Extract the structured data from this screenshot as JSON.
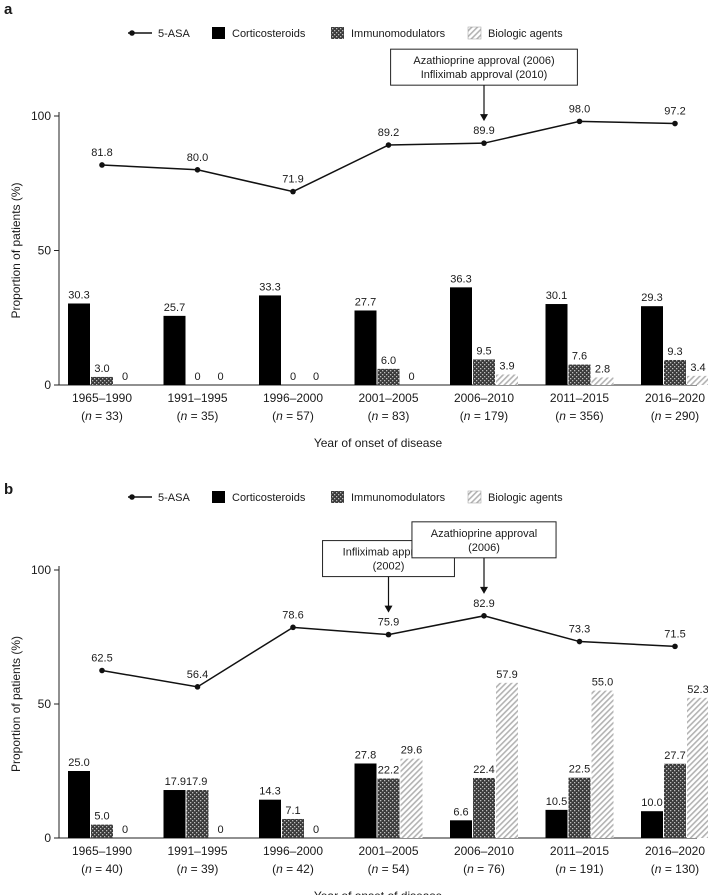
{
  "chart_data": [
    {
      "panel_label": "a",
      "type": "bar+line",
      "title": "",
      "xlabel": "Year of onset of disease",
      "ylabel": "Proportion of patients (%)",
      "ylim": [
        0,
        100
      ],
      "yticks": [
        "0",
        "50",
        "100"
      ],
      "categories": [
        "1965–1990",
        "1991–1995",
        "1996–2000",
        "2001–2005",
        "2006–2010",
        "2011–2015",
        "2016–2020"
      ],
      "category_n": [
        "(n = 33)",
        "(n = 35)",
        "(n = 57)",
        "(n = 83)",
        "(n = 179)",
        "(n = 356)",
        "(n = 290)"
      ],
      "legend": [
        {
          "name": "5-ASA",
          "style": "line"
        },
        {
          "name": "Corticosteroids",
          "style": "solid"
        },
        {
          "name": "Immunomodulators",
          "style": "dotted"
        },
        {
          "name": "Biologic agents",
          "style": "hatched"
        }
      ],
      "line_series": {
        "name": "5-ASA",
        "values": [
          81.8,
          80.0,
          71.9,
          89.2,
          89.9,
          98.0,
          97.2
        ],
        "labels": [
          "81.8",
          "80.0",
          "71.9",
          "89.2",
          "89.9",
          "98.0",
          "97.2"
        ]
      },
      "bar_series": [
        {
          "name": "Corticosteroids",
          "style": "solid",
          "values": [
            30.3,
            25.7,
            33.3,
            27.7,
            36.3,
            30.1,
            29.3
          ],
          "labels": [
            "30.3",
            "",
            "33.3",
            "27.7",
            "36.3",
            "30.1",
            "29.3"
          ]
        },
        {
          "name": "Immunomodulators",
          "style": "dotted",
          "values": [
            3.0,
            0,
            0,
            6.0,
            9.5,
            7.6,
            9.3
          ],
          "labels": [
            "3.0",
            "0",
            "0",
            "6.0",
            "9.5",
            "7.6",
            "9.3"
          ]
        },
        {
          "name": "Biologic agents",
          "style": "hatched",
          "values": [
            0,
            0,
            0,
            0,
            3.9,
            2.8,
            3.4
          ],
          "labels": [
            "0",
            "0",
            "0",
            "0",
            "3.9",
            "2.8",
            "3.4"
          ]
        }
      ],
      "extra_labels": [
        {
          "category_index": 1,
          "text": "25.7"
        }
      ],
      "annotations": [
        {
          "lines": [
            "Azathioprine approval (2006)",
            "Infliximab approval (2010)"
          ],
          "category_index": 4
        }
      ]
    },
    {
      "panel_label": "b",
      "type": "bar+line",
      "title": "",
      "xlabel": "Year of onset of disease",
      "ylabel": "Proportion of patients (%)",
      "ylim": [
        0,
        100
      ],
      "yticks": [
        "0",
        "50",
        "100"
      ],
      "categories": [
        "1965–1990",
        "1991–1995",
        "1996–2000",
        "2001–2005",
        "2006–2010",
        "2011–2015",
        "2016–2020"
      ],
      "category_n": [
        "(n = 40)",
        "(n = 39)",
        "(n = 42)",
        "(n = 54)",
        "(n = 76)",
        "(n = 191)",
        "(n = 130)"
      ],
      "legend": [
        {
          "name": "5-ASA",
          "style": "line"
        },
        {
          "name": "Corticosteroids",
          "style": "solid"
        },
        {
          "name": "Immunomodulators",
          "style": "dotted"
        },
        {
          "name": "Biologic agents",
          "style": "hatched"
        }
      ],
      "line_series": {
        "name": "5-ASA",
        "values": [
          62.5,
          56.4,
          78.6,
          75.9,
          82.9,
          73.3,
          71.5
        ],
        "labels": [
          "62.5",
          "56.4",
          "78.6",
          "75.9",
          "82.9",
          "73.3",
          "71.5"
        ]
      },
      "bar_series": [
        {
          "name": "Corticosteroids",
          "style": "solid",
          "values": [
            25.0,
            17.9,
            14.3,
            27.8,
            6.6,
            10.5,
            10.0
          ],
          "labels": [
            "25.0",
            "",
            "14.3",
            "27.8",
            "6.6",
            "10.5",
            "10.0"
          ]
        },
        {
          "name": "Immunomodulators",
          "style": "dotted",
          "values": [
            5.0,
            17.9,
            7.1,
            22.2,
            22.4,
            22.5,
            27.7
          ],
          "labels": [
            "5.0",
            "",
            "7.1",
            "22.2",
            "22.4",
            "22.5",
            "27.7"
          ]
        },
        {
          "name": "Biologic agents",
          "style": "hatched",
          "values": [
            0,
            0,
            0,
            29.6,
            57.9,
            55.0,
            52.3
          ],
          "labels": [
            "0",
            "0",
            "0",
            "29.6",
            "57.9",
            "55.0",
            "52.3"
          ]
        }
      ],
      "extra_labels": [
        {
          "category_index": 1,
          "text": "17.917.9"
        }
      ],
      "annotations": [
        {
          "lines": [
            "Infliximab approval",
            "(2002)"
          ],
          "category_index": 3
        },
        {
          "lines": [
            "Azathioprine approval",
            "(2006)"
          ],
          "category_index": 4
        }
      ]
    }
  ]
}
